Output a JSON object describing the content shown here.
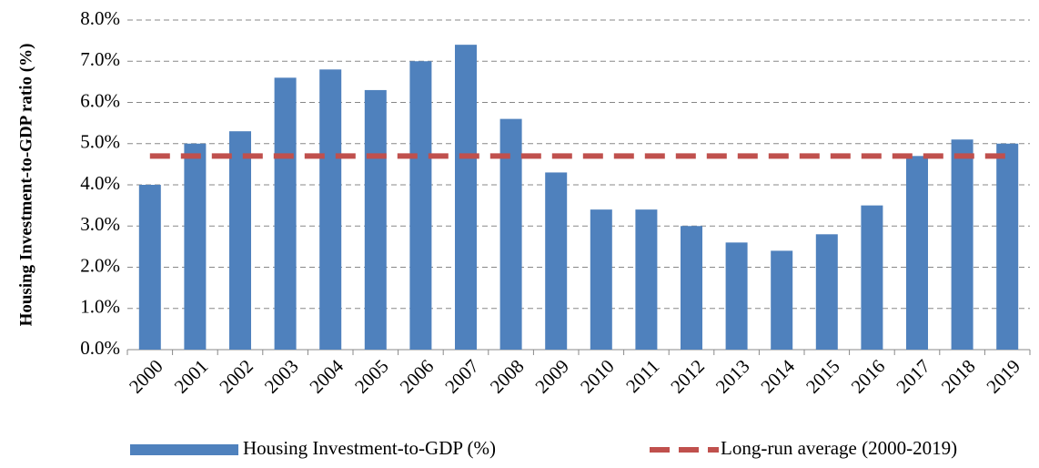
{
  "chart_data": {
    "type": "bar",
    "y_label": "Housing Investment-to-GDP ratio (%)",
    "categories": [
      "2000",
      "2001",
      "2002",
      "2003",
      "2004",
      "2005",
      "2006",
      "2007",
      "2008",
      "2009",
      "2010",
      "2011",
      "2012",
      "2013",
      "2014",
      "2015",
      "2016",
      "2017",
      "2018",
      "2019"
    ],
    "series": [
      {
        "name": "Housing Investment-to-GDP (%)",
        "type": "bar",
        "color": "#4f81bd",
        "values": [
          4.0,
          5.0,
          5.3,
          6.6,
          6.8,
          6.3,
          7.0,
          7.4,
          5.6,
          4.3,
          3.4,
          3.4,
          3.0,
          2.6,
          2.4,
          2.8,
          3.5,
          4.7,
          5.1,
          5.0
        ]
      },
      {
        "name": "Long-run average (2000-2019)",
        "type": "line",
        "color": "#c0504d",
        "values": [
          4.7,
          4.7,
          4.7,
          4.7,
          4.7,
          4.7,
          4.7,
          4.7,
          4.7,
          4.7,
          4.7,
          4.7,
          4.7,
          4.7,
          4.7,
          4.7,
          4.7,
          4.7,
          4.7,
          4.7
        ]
      }
    ],
    "ylim": [
      0,
      8
    ],
    "yticks": [
      {
        "value": 0,
        "label": "0.0%"
      },
      {
        "value": 1,
        "label": "1.0%"
      },
      {
        "value": 2,
        "label": "2.0%"
      },
      {
        "value": 3,
        "label": "3.0%"
      },
      {
        "value": 4,
        "label": "4.0%"
      },
      {
        "value": 5,
        "label": "5.0%"
      },
      {
        "value": 6,
        "label": "6.0%"
      },
      {
        "value": 7,
        "label": "7.0%"
      },
      {
        "value": 8,
        "label": "8.0%"
      }
    ],
    "grid": true,
    "legend": "bottom"
  }
}
